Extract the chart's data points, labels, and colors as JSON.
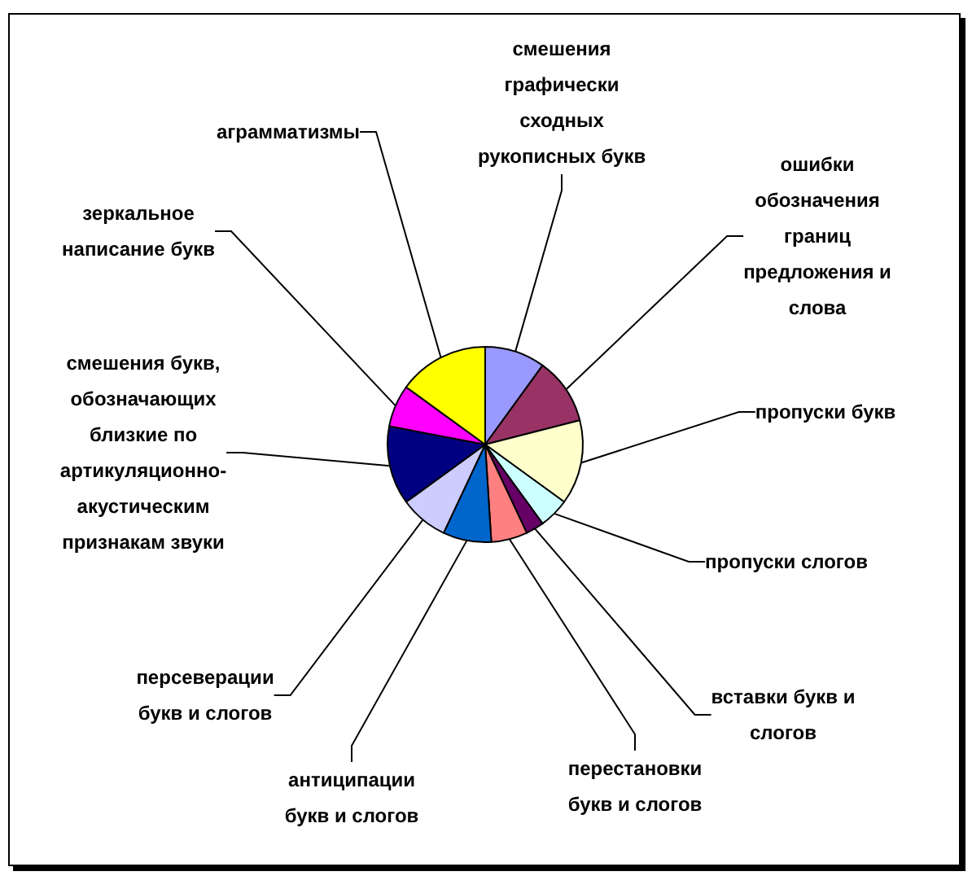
{
  "chart_data": {
    "type": "pie",
    "categories": [
      "смешения графически сходных рукописных букв",
      "ошибки обозначения границ предложения и слова",
      "пропуски букв",
      "пропуски слогов",
      "вставки букв и слогов",
      "перестановки букв и слогов",
      "антиципации букв и слогов",
      "персеверации букв и слогов",
      "смешения букв, обозначающих близкие по артикуляционно-акустическим признакам звуки",
      "зеркальное написание букв",
      "аграмматизмы"
    ],
    "values": [
      10,
      11,
      14,
      5,
      3,
      6,
      8,
      8,
      13,
      7,
      15
    ],
    "colors": [
      "#9999ff",
      "#993366",
      "#ffffcc",
      "#ccffff",
      "#660066",
      "#ff8080",
      "#0066cc",
      "#ccccff",
      "#000080",
      "#ff00ff",
      "#ffff00"
    ]
  }
}
